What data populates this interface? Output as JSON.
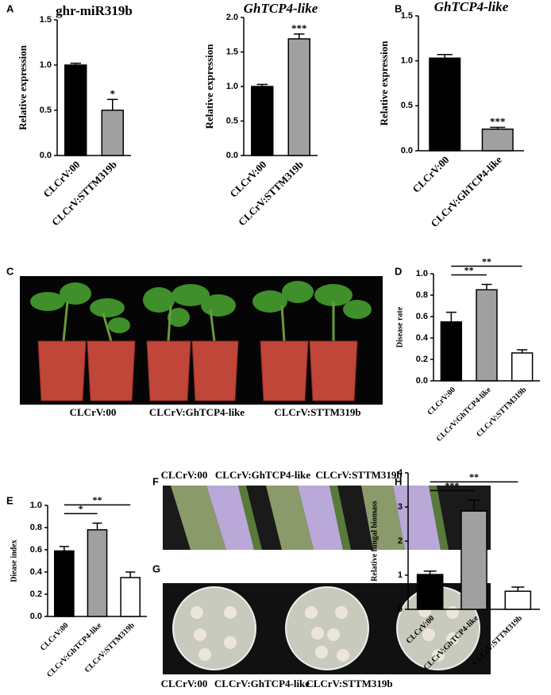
{
  "panel_letters": [
    "A",
    "B",
    "C",
    "D",
    "E",
    "F",
    "G",
    "H"
  ],
  "photos": {
    "C": {
      "captions": [
        "CLCrV:00",
        "CLCrV:GhTCP4-like",
        "CLCrV:STTM319b"
      ]
    },
    "F": {
      "captions": [
        "CLCrV:00",
        "CLCrV:GhTCP4-like",
        "CLCrV:STTM319b"
      ]
    },
    "G": {
      "captions": [
        "CLCrV:00",
        "CLCrV:GhTCP4-like",
        "CLCrV:STTM319b"
      ]
    }
  },
  "chart_data": [
    {
      "type": "bar",
      "title": "ghr-miR319b",
      "y_label": "Relative expression",
      "categories": [
        "CLCrV:00",
        "CLCrV:STTM319b"
      ],
      "values": [
        1.0,
        0.5
      ],
      "errors": [
        0.02,
        0.12
      ],
      "colors": [
        "#000000",
        "#a0a0a0"
      ],
      "annotations": [
        null,
        "*"
      ],
      "ylim": [
        0,
        1.5
      ],
      "yticks": [
        {
          "value": 0,
          "label": "0.0"
        },
        0.5,
        {
          "value": 1,
          "label": "1.0"
        },
        1.5
      ]
    },
    {
      "type": "bar",
      "title": "GhTCP4-like",
      "y_label": "Relative expression",
      "categories": [
        "CLCrV:00",
        "CLCrV:STTM319b"
      ],
      "values": [
        1.0,
        1.69
      ],
      "errors": [
        0.03,
        0.07
      ],
      "colors": [
        "#000000",
        "#a0a0a0"
      ],
      "annotations": [
        null,
        "***"
      ],
      "ylim": [
        0,
        2
      ],
      "yticks": [
        {
          "value": 0,
          "label": "0.0"
        },
        0.5,
        {
          "value": 1,
          "label": "1.0"
        },
        1.5,
        {
          "value": 2,
          "label": "2.0"
        }
      ]
    },
    {
      "type": "bar",
      "title": "GhTCP4-like",
      "y_label": "Relative expression",
      "categories": [
        "CLCrV:00",
        "CLCrV:GhTCP4-like"
      ],
      "values": [
        1.03,
        0.24
      ],
      "errors": [
        0.04,
        0.02
      ],
      "colors": [
        "#000000",
        "#a0a0a0"
      ],
      "annotations": [
        null,
        "***"
      ],
      "ylim": [
        0,
        1.5
      ],
      "yticks": [
        {
          "value": 0,
          "label": "0.0"
        },
        0.5,
        {
          "value": 1,
          "label": "1.0"
        },
        1.5
      ]
    },
    {
      "type": "bar",
      "y_label": "Disease rate",
      "categories": [
        "CLCrV:00",
        "CLCrV:GhTCP4-like",
        "CLCrV:STTM319b"
      ],
      "values": [
        0.55,
        0.85,
        0.26
      ],
      "errors": [
        0.09,
        0.05,
        0.03
      ],
      "colors": [
        "#000000",
        "#a0a0a0",
        "#ffffff"
      ],
      "brackets": [
        {
          "text": "**",
          "between": [
            "CLCrV:00",
            "CLCrV:GhTCP4-like"
          ]
        },
        {
          "text": "**",
          "between": [
            "CLCrV:00",
            "CLCrV:STTM319b"
          ]
        }
      ],
      "ylim": [
        0,
        1
      ],
      "yticks": [
        {
          "value": 0,
          "label": "0.0"
        },
        0.2,
        0.4,
        0.6,
        0.8,
        {
          "value": 1,
          "label": "1.0"
        }
      ]
    },
    {
      "type": "bar",
      "y_label": "Diease index",
      "categories": [
        "CLCrV:00",
        "CLCrV:GhTCP4-like",
        "CLCrV:STTM319b"
      ],
      "values": [
        0.59,
        0.78,
        0.35
      ],
      "errors": [
        0.04,
        0.06,
        0.05
      ],
      "colors": [
        "#000000",
        "#a0a0a0",
        "#ffffff"
      ],
      "brackets": [
        {
          "text": "*",
          "between": [
            "CLCrV:00",
            "CLCrV:GhTCP4-like"
          ]
        },
        {
          "text": "**",
          "between": [
            "CLCrV:00",
            "CLCrV:STTM319b"
          ]
        }
      ],
      "ylim": [
        0,
        1
      ],
      "yticks": [
        {
          "value": 0,
          "label": "0.0"
        },
        0.2,
        0.4,
        0.6,
        0.8,
        {
          "value": 1,
          "label": "1.0"
        }
      ]
    },
    {
      "type": "bar",
      "y_label": "Relative fungal biomass",
      "categories": [
        "CLCrV:00",
        "CLCrV:GhTCP4-like",
        "CLCrV:STTM319b"
      ],
      "values": [
        1.02,
        2.88,
        0.53
      ],
      "errors": [
        0.1,
        0.32,
        0.12
      ],
      "colors": [
        "#000000",
        "#a0a0a0",
        "#ffffff"
      ],
      "brackets": [
        {
          "text": "***",
          "between": [
            "CLCrV:00",
            "CLCrV:GhTCP4-like"
          ]
        },
        {
          "text": "**",
          "between": [
            "CLCrV:00",
            "CLCrV:STTM319b"
          ]
        }
      ],
      "ylim": [
        0,
        4
      ],
      "yticks": [
        0,
        1,
        2,
        3,
        4
      ]
    }
  ]
}
